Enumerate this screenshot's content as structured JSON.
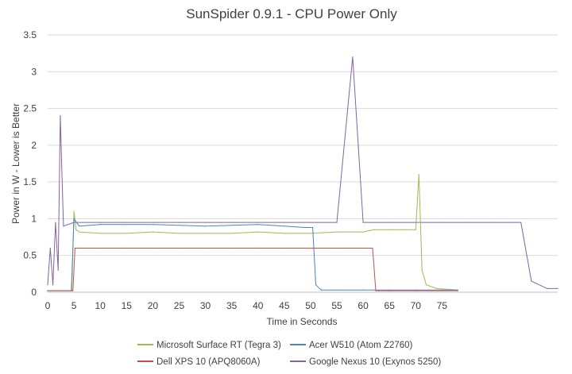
{
  "chart_data": {
    "type": "line",
    "title": "SunSpider 0.9.1 - CPU Power Only",
    "xlabel": "Time in Seconds",
    "ylabel": "Power in W - Lower is Better",
    "xlim": [
      0,
      97
    ],
    "ylim": [
      0,
      3.5
    ],
    "x_ticks": [
      "0",
      "5",
      "10",
      "15",
      "20",
      "25",
      "30",
      "35",
      "40",
      "45",
      "50",
      "55",
      "60",
      "65",
      "70",
      "75"
    ],
    "y_ticks": [
      "0",
      "0.5",
      "1",
      "1.5",
      "2",
      "2.5",
      "3",
      "3.5"
    ],
    "grid": "horizontal",
    "legend_position": "bottom",
    "series": [
      {
        "name": "Microsoft Surface RT (Tegra 3)",
        "color": "#9bbb59",
        "x": [
          0,
          4.6,
          5.0,
          5.4,
          6,
          10,
          15,
          20,
          25,
          30,
          35,
          40,
          45,
          50,
          55,
          60,
          62,
          65,
          68,
          70,
          70.6,
          71.2,
          72,
          74,
          78
        ],
        "values": [
          0.02,
          0.02,
          1.1,
          0.85,
          0.82,
          0.8,
          0.8,
          0.82,
          0.8,
          0.8,
          0.8,
          0.82,
          0.8,
          0.8,
          0.82,
          0.82,
          0.85,
          0.85,
          0.85,
          0.85,
          1.6,
          0.3,
          0.1,
          0.05,
          0.03
        ]
      },
      {
        "name": "Acer W510 (Atom Z2760)",
        "color": "#4f81bd",
        "x": [
          0,
          4.5,
          5.0,
          6,
          10,
          20,
          30,
          40,
          45,
          49,
          50.4,
          51,
          52,
          55,
          60,
          62,
          65,
          70,
          75,
          78
        ],
        "values": [
          0.02,
          0.02,
          1.0,
          0.9,
          0.92,
          0.92,
          0.9,
          0.92,
          0.9,
          0.88,
          0.88,
          0.1,
          0.03,
          0.03,
          0.03,
          0.03,
          0.03,
          0.03,
          0.03,
          0.03
        ]
      },
      {
        "name": "Dell XPS 10 (APQ8060A)",
        "color": "#c0504d",
        "x": [
          0,
          4.8,
          5.2,
          6,
          10,
          15,
          20,
          25,
          30,
          35,
          40,
          45,
          50,
          55,
          60,
          61.8,
          62.4,
          63,
          65,
          70,
          75,
          78
        ],
        "values": [
          0.02,
          0.02,
          0.6,
          0.6,
          0.6,
          0.6,
          0.6,
          0.6,
          0.6,
          0.6,
          0.6,
          0.6,
          0.6,
          0.6,
          0.6,
          0.6,
          0.02,
          0.02,
          0.02,
          0.02,
          0.02,
          0.02
        ]
      },
      {
        "name": "Google Nexus 10 (Exynos 5250)",
        "color": "#8064a2",
        "x": [
          0,
          0.5,
          1.0,
          1.5,
          2.0,
          2.4,
          3,
          5,
          10,
          15,
          20,
          25,
          30,
          35,
          40,
          45,
          50,
          55,
          58,
          60,
          65,
          70,
          75,
          80,
          85,
          88,
          90,
          92,
          95,
          97
        ],
        "values": [
          0.1,
          0.6,
          0.1,
          0.95,
          0.3,
          2.4,
          0.9,
          0.95,
          0.95,
          0.95,
          0.95,
          0.95,
          0.95,
          0.95,
          0.95,
          0.95,
          0.95,
          0.95,
          3.2,
          0.95,
          0.95,
          0.95,
          0.95,
          0.95,
          0.95,
          0.95,
          0.95,
          0.15,
          0.05,
          0.05
        ]
      }
    ]
  }
}
